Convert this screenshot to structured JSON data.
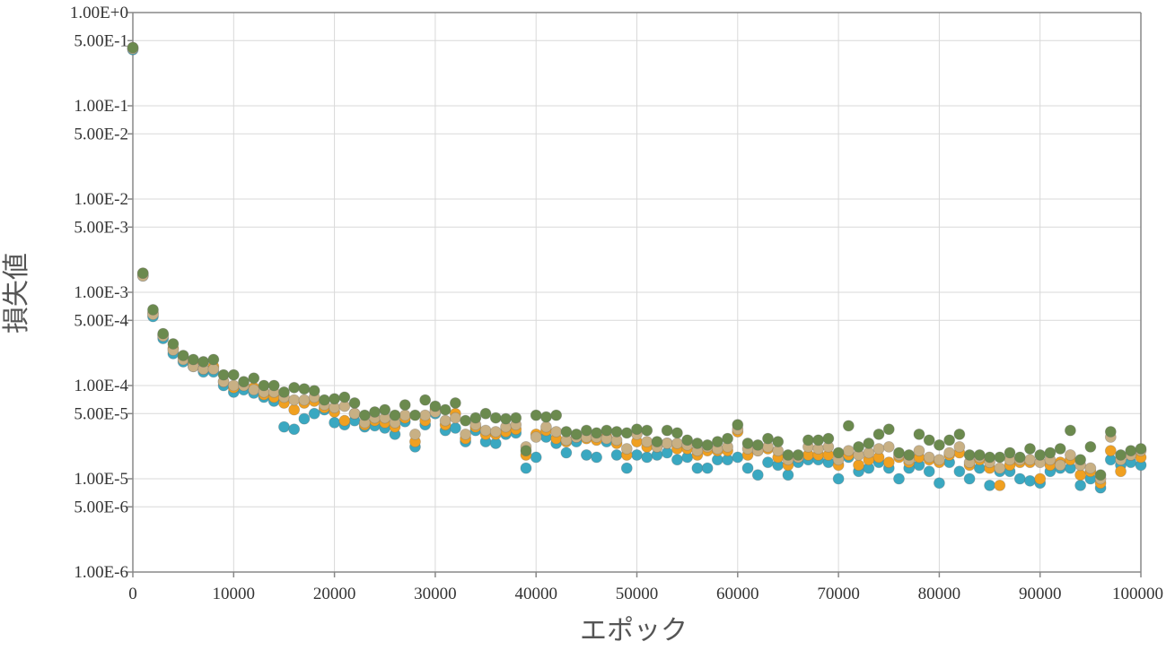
{
  "chart_data": {
    "type": "scatter",
    "title": "",
    "xlabel": "エポック",
    "ylabel": "損失値",
    "xlim": [
      0,
      100000
    ],
    "ylim": [
      1e-06,
      1
    ],
    "yscale": "log",
    "grid": true,
    "legend": "none",
    "x_ticks": [
      {
        "value": 0,
        "label": "0"
      },
      {
        "value": 10000,
        "label": "10000"
      },
      {
        "value": 20000,
        "label": "20000"
      },
      {
        "value": 30000,
        "label": "30000"
      },
      {
        "value": 40000,
        "label": "40000"
      },
      {
        "value": 50000,
        "label": "50000"
      },
      {
        "value": 60000,
        "label": "60000"
      },
      {
        "value": 70000,
        "label": "70000"
      },
      {
        "value": 80000,
        "label": "80000"
      },
      {
        "value": 90000,
        "label": "90000"
      },
      {
        "value": 100000,
        "label": "100000"
      }
    ],
    "y_ticks": [
      {
        "value": 1,
        "label": "1.00E+0"
      },
      {
        "value": 0.5,
        "label": "5.00E-1"
      },
      {
        "value": 0.1,
        "label": "1.00E-1"
      },
      {
        "value": 0.05,
        "label": "5.00E-2"
      },
      {
        "value": 0.01,
        "label": "1.00E-2"
      },
      {
        "value": 0.005,
        "label": "5.00E-3"
      },
      {
        "value": 0.001,
        "label": "1.00E-3"
      },
      {
        "value": 0.0005,
        "label": "5.00E-4"
      },
      {
        "value": 0.0001,
        "label": "1.00E-4"
      },
      {
        "value": 5e-05,
        "label": "5.00E-5"
      },
      {
        "value": 1e-05,
        "label": "1.00E-5"
      },
      {
        "value": 5e-06,
        "label": "5.00E-6"
      },
      {
        "value": 1e-06,
        "label": "1.00E-6"
      }
    ],
    "x": [
      0,
      1000,
      2000,
      3000,
      4000,
      5000,
      6000,
      7000,
      8000,
      9000,
      10000,
      11000,
      12000,
      13000,
      14000,
      15000,
      16000,
      17000,
      18000,
      19000,
      20000,
      21000,
      22000,
      23000,
      24000,
      25000,
      26000,
      27000,
      28000,
      29000,
      30000,
      31000,
      32000,
      33000,
      34000,
      35000,
      36000,
      37000,
      38000,
      39000,
      40000,
      41000,
      42000,
      43000,
      44000,
      45000,
      46000,
      47000,
      48000,
      49000,
      50000,
      51000,
      52000,
      53000,
      54000,
      55000,
      56000,
      57000,
      58000,
      59000,
      60000,
      61000,
      62000,
      63000,
      64000,
      65000,
      66000,
      67000,
      68000,
      69000,
      70000,
      71000,
      72000,
      73000,
      74000,
      75000,
      76000,
      77000,
      78000,
      79000,
      80000,
      81000,
      82000,
      83000,
      84000,
      85000,
      86000,
      87000,
      88000,
      89000,
      90000,
      91000,
      92000,
      93000,
      94000,
      95000,
      96000,
      97000,
      98000,
      99000,
      100000
    ],
    "series": [
      {
        "color": "#3aa8c1",
        "values": [
          0.4,
          0.0015,
          0.00055,
          0.00032,
          0.00022,
          0.00018,
          0.00016,
          0.00014,
          0.00014,
          0.0001,
          8.5e-05,
          9e-05,
          8.3e-05,
          7.5e-05,
          6.8e-05,
          3.6e-05,
          3.4e-05,
          4.4e-05,
          5e-05,
          5.5e-05,
          4e-05,
          3.8e-05,
          4.2e-05,
          3.6e-05,
          3.7e-05,
          3.5e-05,
          3e-05,
          4.1e-05,
          2.2e-05,
          3.8e-05,
          5e-05,
          3.3e-05,
          3.5e-05,
          2.5e-05,
          3.3e-05,
          2.5e-05,
          2.4e-05,
          3e-05,
          3.1e-05,
          1.3e-05,
          1.7e-05,
          2.8e-05,
          2.4e-05,
          1.9e-05,
          2.5e-05,
          1.8e-05,
          1.7e-05,
          2.5e-05,
          1.8e-05,
          1.3e-05,
          1.8e-05,
          1.7e-05,
          1.8e-05,
          1.9e-05,
          1.6e-05,
          1.7e-05,
          1.3e-05,
          1.3e-05,
          1.6e-05,
          1.6e-05,
          1.7e-05,
          1.3e-05,
          1.1e-05,
          1.5e-05,
          1.4e-05,
          1.1e-05,
          1.5e-05,
          1.6e-05,
          1.6e-05,
          1.5e-05,
          1e-05,
          1.7e-05,
          1.2e-05,
          1.3e-05,
          1.5e-05,
          1.3e-05,
          1e-05,
          1.3e-05,
          1.4e-05,
          1.2e-05,
          9e-06,
          1.5e-05,
          1.2e-05,
          1e-05,
          1.3e-05,
          8.5e-06,
          1.2e-05,
          1.2e-05,
          1e-05,
          9.5e-06,
          9e-06,
          1.2e-05,
          1.3e-05,
          1.3e-05,
          8.5e-06,
          1e-05,
          8e-06,
          1.6e-05,
          1.4e-05,
          1.5e-05,
          1.4e-05
        ]
      },
      {
        "color": "#f0a020",
        "values": [
          0.42,
          0.0016,
          0.0006,
          0.00035,
          0.00025,
          0.0002,
          0.00017,
          0.00015,
          0.00016,
          0.00011,
          9.5e-05,
          0.0001,
          9.5e-05,
          8e-05,
          7.5e-05,
          6.5e-05,
          5.5e-05,
          6.5e-05,
          6.8e-05,
          5.8e-05,
          5.2e-05,
          4.2e-05,
          5e-05,
          3.8e-05,
          4.2e-05,
          4e-05,
          3.6e-05,
          4.5e-05,
          2.5e-05,
          4.2e-05,
          5.5e-05,
          3.8e-05,
          5e-05,
          2.7e-05,
          3.6e-05,
          3e-05,
          3e-05,
          3.2e-05,
          3.4e-05,
          1.8e-05,
          3e-05,
          3.3e-05,
          2.7e-05,
          2.5e-05,
          2.8e-05,
          2.7e-05,
          2.6e-05,
          2.8e-05,
          2.4e-05,
          1.8e-05,
          2.5e-05,
          2.2e-05,
          2.2e-05,
          2.4e-05,
          2.1e-05,
          2.1e-05,
          1.8e-05,
          2e-05,
          2e-05,
          2e-05,
          3.2e-05,
          1.8e-05,
          2e-05,
          2.1e-05,
          1.7e-05,
          1.4e-05,
          1.7e-05,
          1.8e-05,
          1.8e-05,
          1.8e-05,
          1.4e-05,
          1.8e-05,
          1.4e-05,
          1.6e-05,
          1.7e-05,
          1.5e-05,
          1.7e-05,
          1.5e-05,
          1.7e-05,
          1.6e-05,
          1.5e-05,
          1.8e-05,
          1.9e-05,
          1.4e-05,
          1.6e-05,
          1.3e-05,
          8.5e-06,
          1.4e-05,
          1.5e-05,
          1.5e-05,
          1e-05,
          1.4e-05,
          1.5e-05,
          1.6e-05,
          1.1e-05,
          1.2e-05,
          9e-06,
          2e-05,
          1.2e-05,
          1.8e-05,
          1.7e-05
        ]
      },
      {
        "color": "#c8b084",
        "values": [
          0.41,
          0.0015,
          0.00058,
          0.00034,
          0.00024,
          0.00019,
          0.00016,
          0.00015,
          0.00015,
          0.00011,
          0.0001,
          0.0001,
          9e-05,
          8.5e-05,
          8.5e-05,
          7.5e-05,
          7e-05,
          7e-05,
          7.5e-05,
          6.2e-05,
          5.8e-05,
          6e-05,
          5e-05,
          4e-05,
          4.5e-05,
          4.5e-05,
          4e-05,
          4.8e-05,
          3e-05,
          4.8e-05,
          5.2e-05,
          4.2e-05,
          4.5e-05,
          3e-05,
          3.8e-05,
          3.3e-05,
          3.2e-05,
          3.6e-05,
          3.8e-05,
          2.2e-05,
          2.8e-05,
          3.6e-05,
          3.2e-05,
          2.6e-05,
          2.8e-05,
          2.8e-05,
          2.8e-05,
          2.7e-05,
          2.6e-05,
          2.1e-05,
          3e-05,
          2.5e-05,
          2.2e-05,
          2.4e-05,
          2.4e-05,
          2.3e-05,
          2e-05,
          2.2e-05,
          2.1e-05,
          2.2e-05,
          3.4e-05,
          2.1e-05,
          2e-05,
          2.2e-05,
          2e-05,
          1.6e-05,
          1.7e-05,
          2.2e-05,
          2.1e-05,
          2.2e-05,
          1.6e-05,
          2e-05,
          1.8e-05,
          1.9e-05,
          2.1e-05,
          2.2e-05,
          1.8e-05,
          1.6e-05,
          2e-05,
          1.7e-05,
          1.6e-05,
          1.9e-05,
          2.2e-05,
          1.5e-05,
          1.7e-05,
          1.5e-05,
          1.3e-05,
          1.6e-05,
          1.6e-05,
          1.6e-05,
          1.5e-05,
          1.6e-05,
          1.4e-05,
          1.8e-05,
          1.4e-05,
          1.3e-05,
          1e-05,
          2.8e-05,
          1.6e-05,
          1.8e-05,
          2e-05
        ]
      },
      {
        "color": "#6b8a4e",
        "values": [
          0.42,
          0.0016,
          0.00065,
          0.00036,
          0.00028,
          0.00021,
          0.00019,
          0.00018,
          0.00019,
          0.00013,
          0.00013,
          0.00011,
          0.00012,
          0.0001,
          0.0001,
          8.5e-05,
          9.5e-05,
          9.2e-05,
          8.8e-05,
          7e-05,
          7.2e-05,
          7.5e-05,
          6.5e-05,
          4.8e-05,
          5.2e-05,
          5.5e-05,
          4.8e-05,
          6.2e-05,
          4.8e-05,
          7e-05,
          6e-05,
          5.5e-05,
          6.5e-05,
          4.2e-05,
          4.5e-05,
          5e-05,
          4.5e-05,
          4.4e-05,
          4.5e-05,
          2e-05,
          4.8e-05,
          4.6e-05,
          4.8e-05,
          3.2e-05,
          3e-05,
          3.3e-05,
          3.1e-05,
          3.3e-05,
          3.2e-05,
          3.1e-05,
          3.4e-05,
          3.3e-05,
          2.5e-05,
          3.3e-05,
          3.1e-05,
          2.6e-05,
          2.4e-05,
          2.3e-05,
          2.5e-05,
          2.7e-05,
          3.8e-05,
          2.4e-05,
          2.3e-05,
          2.7e-05,
          2.5e-05,
          1.8e-05,
          1.8e-05,
          2.6e-05,
          2.6e-05,
          2.7e-05,
          1.9e-05,
          3.7e-05,
          2.2e-05,
          2.4e-05,
          3e-05,
          3.4e-05,
          1.9e-05,
          1.8e-05,
          3e-05,
          2.6e-05,
          2.3e-05,
          2.6e-05,
          3e-05,
          1.8e-05,
          1.8e-05,
          1.7e-05,
          1.7e-05,
          1.9e-05,
          1.7e-05,
          2.1e-05,
          1.8e-05,
          1.9e-05,
          2.1e-05,
          3.3e-05,
          1.6e-05,
          2.2e-05,
          1.1e-05,
          3.2e-05,
          1.8e-05,
          2e-05,
          2.1e-05
        ]
      }
    ]
  }
}
